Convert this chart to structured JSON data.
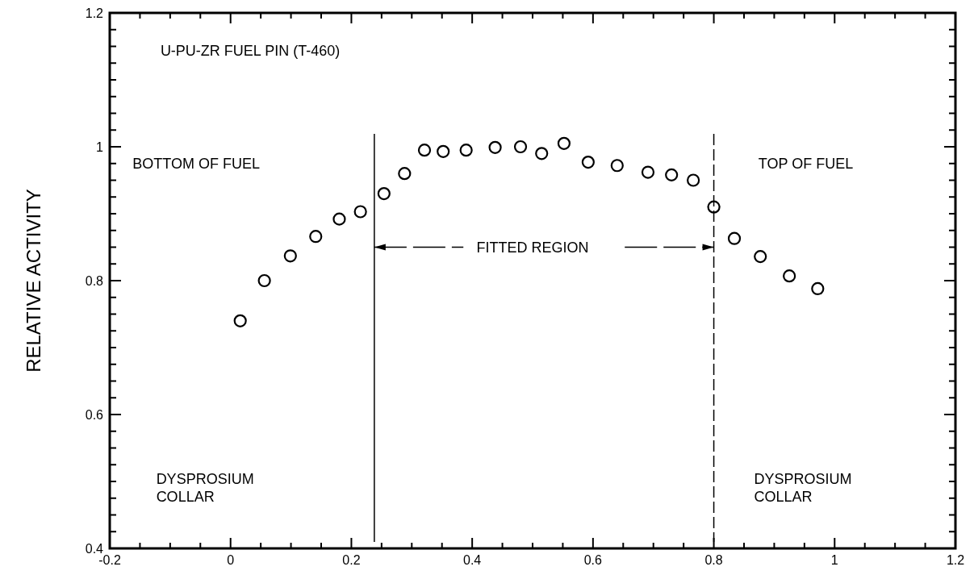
{
  "chart_data": {
    "type": "scatter",
    "ylabel": "RELATIVE ACTIVITY",
    "x": [
      0.016,
      0.056,
      0.099,
      0.141,
      0.18,
      0.215,
      0.254,
      0.288,
      0.321,
      0.352,
      0.39,
      0.438,
      0.48,
      0.515,
      0.552,
      0.592,
      0.64,
      0.691,
      0.73,
      0.766,
      0.8,
      0.834,
      0.877,
      0.925,
      0.972
    ],
    "series": [
      {
        "color": "#000000",
        "values": [
          0.74,
          0.8,
          0.837,
          0.866,
          0.892,
          0.903,
          0.93,
          0.96,
          0.995,
          0.993,
          0.995,
          0.999,
          1.0,
          0.99,
          1.005,
          0.977,
          0.972,
          0.962,
          0.958,
          0.95,
          0.91,
          0.863,
          0.836,
          0.807,
          0.788
        ]
      }
    ],
    "marker": "circle",
    "grid": false,
    "xlim": [
      -0.2,
      1.2
    ],
    "xticks": [
      -0.2,
      {
        "value": -0.15,
        "label": null
      },
      {
        "value": -0.1,
        "label": null
      },
      {
        "value": -0.05,
        "label": null
      },
      0,
      {
        "value": 0.05,
        "label": null
      },
      {
        "value": 0.1,
        "label": null
      },
      {
        "value": 0.15,
        "label": null
      },
      0.2,
      {
        "value": 0.25,
        "label": null
      },
      {
        "value": 0.3,
        "label": null
      },
      {
        "value": 0.35,
        "label": null
      },
      0.4,
      {
        "value": 0.45,
        "label": null
      },
      {
        "value": 0.5,
        "label": null
      },
      {
        "value": 0.55,
        "label": null
      },
      0.6,
      {
        "value": 0.65,
        "label": null
      },
      {
        "value": 0.7,
        "label": null
      },
      {
        "value": 0.75,
        "label": null
      },
      0.8,
      {
        "value": 0.85,
        "label": null
      },
      {
        "value": 0.9,
        "label": null
      },
      {
        "value": 0.95,
        "label": null
      },
      1,
      {
        "value": 1.05,
        "label": null
      },
      {
        "value": 1.1,
        "label": null
      },
      {
        "value": 1.15,
        "label": null
      },
      1.2
    ],
    "ylim": [
      0.4,
      1.2
    ],
    "yticks": [
      0.4,
      {
        "value": 0.425,
        "label": null
      },
      {
        "value": 0.45,
        "label": null
      },
      {
        "value": 0.475,
        "label": null
      },
      {
        "value": 0.5,
        "label": null
      },
      {
        "value": 0.525,
        "label": null
      },
      {
        "value": 0.55,
        "label": null
      },
      {
        "value": 0.575,
        "label": null
      },
      0.6,
      {
        "value": 0.625,
        "label": null
      },
      {
        "value": 0.65,
        "label": null
      },
      {
        "value": 0.675,
        "label": null
      },
      {
        "value": 0.7,
        "label": null
      },
      {
        "value": 0.725,
        "label": null
      },
      {
        "value": 0.75,
        "label": null
      },
      {
        "value": 0.775,
        "label": null
      },
      0.8,
      {
        "value": 0.825,
        "label": null
      },
      {
        "value": 0.85,
        "label": null
      },
      {
        "value": 0.875,
        "label": null
      },
      {
        "value": 0.9,
        "label": null
      },
      {
        "value": 0.925,
        "label": null
      },
      {
        "value": 0.95,
        "label": null
      },
      {
        "value": 0.975,
        "label": null
      },
      1,
      {
        "value": 1.025,
        "label": null
      },
      {
        "value": 1.05,
        "label": null
      },
      {
        "value": 1.075,
        "label": null
      },
      {
        "value": 1.1,
        "label": null
      },
      {
        "value": 1.125,
        "label": null
      },
      {
        "value": 1.15,
        "label": null
      },
      {
        "value": 1.175,
        "label": null
      },
      1.2
    ],
    "ref_lines": [
      {
        "axis": "x",
        "value": 0.238,
        "color": "#000000",
        "line_style": "solid"
      },
      {
        "axis": "x",
        "value": 0.8,
        "color": "#000000",
        "line_style": "dashed"
      }
    ],
    "annotations": [
      "U-PU-ZR FUEL PIN (T-460)",
      "BOTTOM OF FUEL",
      "TOP OF FUEL",
      {
        "text": "FITTED REGION",
        "x": 0.238,
        "y": 0.85
      },
      "DYSPROSIUM\nCOLLAR",
      "DYSPROSIUM\nCOLLAR"
    ]
  }
}
